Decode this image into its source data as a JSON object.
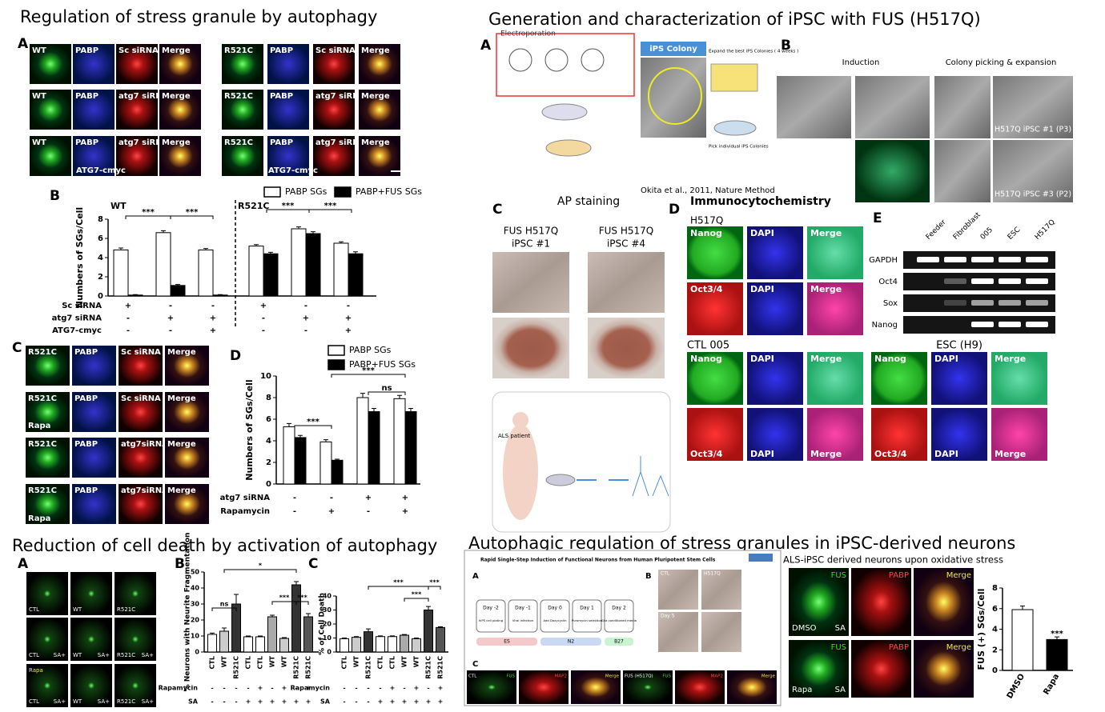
{
  "regulation": {
    "title": "Regulation of stress granule by autophagy",
    "panel_a": {
      "letter": "A",
      "rows": [
        [
          "WT",
          "PABP",
          "Sc siRNA",
          "Merge",
          "R521C",
          "PABP",
          "Sc siRNA",
          "Merge"
        ],
        [
          "WT",
          "PABP",
          "atg7 siRNA",
          "Merge",
          "R521C",
          "PABP",
          "atg7 siRNA",
          "Merge"
        ],
        [
          "WT",
          "PABP",
          "atg7 siRNA",
          "Merge",
          "R521C",
          "PABP",
          "atg7 siRNA",
          "Merge"
        ]
      ],
      "overexpression": "ATG7-cmyc"
    },
    "panel_b": {
      "letter": "B",
      "ylabel": "Numbers of SGs/Cell",
      "groups": [
        "WT",
        "R521C"
      ],
      "ylim": [
        0,
        8
      ],
      "yticks": [
        0,
        2,
        4,
        6,
        8
      ],
      "series": [
        {
          "name": "PABP SGs",
          "color": "#ffffff",
          "values": [
            4.8,
            6.6,
            4.8,
            5.2,
            7.0,
            5.5
          ],
          "errors": [
            0.2,
            0.2,
            0.15,
            0.15,
            0.2,
            0.15
          ]
        },
        {
          "name": "PABP+FUS SGs",
          "color": "#000000",
          "values": [
            0.1,
            1.1,
            0.1,
            4.4,
            6.5,
            4.4
          ],
          "errors": [
            0.05,
            0.1,
            0.05,
            0.15,
            0.2,
            0.2
          ]
        }
      ],
      "condition_labels": [
        "Sc siRNA",
        "atg7 siRNA",
        "ATG7-cmyc"
      ],
      "conditions": [
        [
          "+",
          "-",
          "-",
          "+",
          "-",
          "-"
        ],
        [
          "-",
          "+",
          "+",
          "-",
          "+",
          "+"
        ],
        [
          "-",
          "-",
          "+",
          "-",
          "-",
          "+"
        ]
      ],
      "significance": [
        "***",
        "***",
        "***",
        "***"
      ]
    },
    "panel_c": {
      "letter": "C",
      "rows": [
        [
          "R521C",
          "PABP",
          "Sc siRNA",
          "Merge"
        ],
        [
          "R521C",
          "PABP",
          "Sc siRNA",
          "Merge"
        ],
        [
          "R521C",
          "PABP",
          "atg7siRNA",
          "Merge"
        ],
        [
          "R521C",
          "PABP",
          "atg7siRNA",
          "Merge"
        ]
      ],
      "treatment": "Rapa"
    },
    "panel_d": {
      "letter": "D",
      "ylabel": "Numbers of SGs/Cell",
      "ylim": [
        0,
        10
      ],
      "yticks": [
        0,
        2,
        4,
        6,
        8,
        10
      ],
      "series": [
        {
          "name": "PABP SGs",
          "color": "#ffffff",
          "values": [
            5.3,
            3.9,
            8.0,
            7.9
          ],
          "errors": [
            0.3,
            0.2,
            0.4,
            0.3
          ]
        },
        {
          "name": "PABP+FUS SGs",
          "color": "#000000",
          "values": [
            4.3,
            2.2,
            6.7,
            6.7
          ],
          "errors": [
            0.2,
            0.1,
            0.3,
            0.3
          ]
        }
      ],
      "condition_labels": [
        "atg7 siRNA",
        "Rapamycin"
      ],
      "conditions": [
        [
          "-",
          "-",
          "+",
          "+"
        ],
        [
          "-",
          "+",
          "-",
          "+"
        ]
      ],
      "significance": [
        "***",
        "***",
        "ns"
      ]
    }
  },
  "generation": {
    "title": "Generation and characterization  of iPSC with FUS (H517Q)",
    "panel_a": {
      "letter": "A",
      "method": "Electroporation",
      "colony": "iPS Colony",
      "expand": "Expand the best iPS Colonies ( 4 weeks )",
      "pick": "Pick individual iPS Colonies",
      "citation": "Okita et al., 2011, Nature Method"
    },
    "panel_b": {
      "letter": "B",
      "stages": [
        "Induction",
        "Colony picking & expansion"
      ],
      "clones": [
        "H517Q  iPSC #1 (P3)",
        "H517Q  iPSC #3 (P2)"
      ]
    },
    "panel_c": {
      "letter": "C",
      "title": "AP staining",
      "clones": [
        [
          "FUS H517Q",
          "iPSC #1"
        ],
        [
          "FUS H517Q",
          "iPSC #4"
        ]
      ]
    },
    "als_scheme": {
      "patient": "ALS patient"
    },
    "panel_d": {
      "letter": "D",
      "title": "Immunocytochemistry",
      "lines": [
        "H517Q",
        "CTL 005",
        "ESC (H9)"
      ],
      "rows": [
        [
          "Nanog",
          "DAPI",
          "Merge"
        ],
        [
          "Oct3/4",
          "DAPI",
          "Merge"
        ]
      ]
    },
    "panel_e": {
      "letter": "E",
      "lanes": [
        "Feeder",
        "Fibroblast",
        "005",
        "ESC",
        "H517Q"
      ],
      "genes": [
        "GAPDH",
        "Oct4",
        "Sox",
        "Nanog"
      ]
    }
  },
  "cell_death": {
    "title": "Reduction of cell death by activation of autophagy",
    "panel_a": {
      "letter": "A",
      "lines": [
        "CTL",
        "WT",
        "R521C"
      ],
      "stress": "SA+",
      "treatment": "Rapa"
    },
    "panel_b": {
      "letter": "B",
      "ylabel": "% Neurons with Neurite Fragmentation",
      "ylim": [
        0,
        50
      ],
      "yticks": [
        0,
        10,
        20,
        30,
        40,
        50
      ],
      "categories": [
        "CTL",
        "WT",
        "R521C",
        "CTL",
        "CTL",
        "WT",
        "WT",
        "R521C",
        "R521C"
      ],
      "values": [
        11,
        13,
        30,
        9.5,
        9.5,
        22,
        8.5,
        42,
        22
      ],
      "errors": [
        0.8,
        2,
        6,
        0.5,
        0.5,
        1,
        0.5,
        2,
        2
      ],
      "colors": [
        "#ffffff",
        "#cccccc",
        "#333333",
        "#ffffff",
        "#ffffff",
        "#aaaaaa",
        "#cccccc",
        "#333333",
        "#555555"
      ],
      "condition_labels": [
        "Rapamycin",
        "SA"
      ],
      "conditions": [
        [
          "-",
          "-",
          "-",
          "-",
          "+",
          "-",
          "+",
          "-",
          "+"
        ],
        [
          "-",
          "-",
          "-",
          "+",
          "+",
          "+",
          "+",
          "+",
          "+"
        ]
      ],
      "significance": [
        "*",
        "ns",
        "***",
        "***"
      ]
    },
    "panel_c": {
      "letter": "C",
      "ylabel": "% of Cell Death",
      "ylim": [
        0,
        40
      ],
      "yticks": [
        0,
        10,
        20,
        30,
        40
      ],
      "categories": [
        "CTL",
        "WT",
        "R521C",
        "CTL",
        "CTL",
        "WT",
        "WT",
        "R521C",
        "R521C"
      ],
      "values": [
        9.5,
        10.5,
        14.5,
        11,
        11,
        12,
        9.5,
        30,
        17.5
      ],
      "errors": [
        0.5,
        0.5,
        2,
        0.5,
        0.5,
        0.5,
        0.5,
        2.5,
        0.5
      ],
      "colors": [
        "#ffffff",
        "#cccccc",
        "#333333",
        "#ffffff",
        "#ffffff",
        "#aaaaaa",
        "#cccccc",
        "#333333",
        "#555555"
      ],
      "condition_labels": [
        "Rapamycin",
        "SA"
      ],
      "conditions": [
        [
          "-",
          "-",
          "-",
          "-",
          "+",
          "-",
          "+",
          "-",
          "+"
        ],
        [
          "-",
          "-",
          "-",
          "+",
          "+",
          "+",
          "+",
          "+",
          "+"
        ]
      ],
      "significance": [
        "***",
        "***",
        "***"
      ]
    }
  },
  "ipsc_neurons": {
    "title": "Autophagic regulation of stress granules in iPSC-derived neurons",
    "article_title": "Rapid Single-Step Induction of Functional Neurons from Human Pluripotent Stem Cells",
    "panels": [
      "A",
      "B",
      "C"
    ],
    "protocol_days": [
      "Day -2",
      "Day -1",
      "Day 0",
      "Day 1",
      "Day 2"
    ],
    "protocol_steps": [
      "hiPS cell plating",
      "Viral infection",
      "Add Doxycyclin",
      "Puromycin selection",
      "Glia conditioned media"
    ],
    "media": [
      "ES",
      "N2",
      "B27"
    ],
    "culture_labels": [
      "CTL",
      "H517Q",
      "Day 5"
    ],
    "neuron_images": [
      {
        "line": "CTL",
        "stain": "FUS"
      },
      {
        "stain": "MAP2"
      },
      {
        "stain": "Merge"
      },
      {
        "line": "FUS (H517Q)",
        "stain": "FUS"
      },
      {
        "stain": "MAP2"
      },
      {
        "stain": "Merge"
      }
    ],
    "stress_panel": {
      "subtitle": "ALS-iPSC derived neurons upon oxidative stress",
      "stains": [
        "FUS",
        "PABP",
        "Merge"
      ],
      "conditions": [
        "DMSO",
        "Rapa"
      ],
      "stressor": "SA"
    },
    "chart": {
      "ylabel": "FUS (+) SGs/Cell",
      "ylim": [
        0,
        8
      ],
      "yticks": [
        0,
        2,
        4,
        6,
        8
      ],
      "categories": [
        "DMSO",
        "Rapa"
      ],
      "values": [
        5.9,
        3.0
      ],
      "errors": [
        0.35,
        0.25
      ],
      "colors": [
        "#ffffff",
        "#000000"
      ],
      "significance": [
        "***"
      ]
    }
  }
}
